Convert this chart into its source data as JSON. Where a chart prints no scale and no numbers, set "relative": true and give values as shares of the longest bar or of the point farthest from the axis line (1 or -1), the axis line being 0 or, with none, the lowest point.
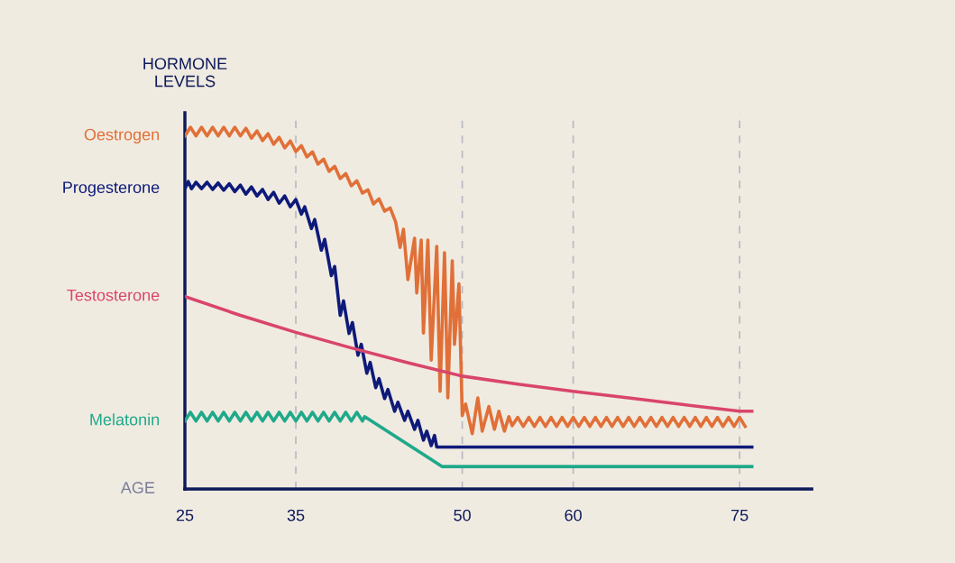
{
  "chart_data": {
    "type": "line",
    "relative": true,
    "ylabel": "HORMONE LEVELS",
    "xlabel": "AGE",
    "xlim": [
      25,
      81.5
    ],
    "xticks": [
      25,
      35,
      50,
      60,
      75
    ],
    "grid": "x",
    "legend": false,
    "marker": "none",
    "line_style": "solid",
    "series": [
      {
        "name": "Oestrogen",
        "color": "#e07038",
        "x": [
          25,
          25.5,
          26,
          26.5,
          27,
          27.5,
          28,
          28.5,
          29,
          29.5,
          30,
          30.5,
          31,
          31.5,
          32,
          32.5,
          33,
          33.5,
          34,
          34.5,
          35,
          35.5,
          36,
          36.5,
          37,
          37.5,
          38,
          38.5,
          39,
          39.5,
          40,
          40.5,
          41,
          41.5,
          42,
          42.5,
          43,
          43.5,
          44,
          44.4,
          44.7,
          45.1,
          45.7,
          45.9,
          46.3,
          46.5,
          46.9,
          47.2,
          47.7,
          48.0,
          48.4,
          48.7,
          49.1,
          49.3,
          49.7,
          50.0,
          50.3,
          50.9,
          51.4,
          51.8,
          52.4,
          52.9,
          53.3,
          53.8,
          54.2,
          54.5,
          55,
          55.5,
          56,
          56.5,
          57,
          57.5,
          58,
          58.5,
          59,
          59.5,
          60,
          60.5,
          61,
          61.5,
          62,
          62.5,
          63,
          63.5,
          64,
          64.5,
          65,
          65.5,
          66,
          66.5,
          67,
          67.5,
          68,
          68.5,
          69,
          69.5,
          70,
          70.5,
          71,
          71.5,
          72,
          72.5,
          73,
          73.5,
          74,
          74.5,
          75,
          75.5
        ],
        "values": [
          0.976,
          1.0,
          0.976,
          1.0,
          0.976,
          1.0,
          0.976,
          1.0,
          0.976,
          1.0,
          0.976,
          0.997,
          0.97,
          0.99,
          0.963,
          0.982,
          0.953,
          0.972,
          0.943,
          0.962,
          0.933,
          0.949,
          0.918,
          0.932,
          0.898,
          0.912,
          0.878,
          0.892,
          0.858,
          0.872,
          0.838,
          0.852,
          0.818,
          0.827,
          0.788,
          0.802,
          0.768,
          0.777,
          0.738,
          0.668,
          0.718,
          0.579,
          0.693,
          0.542,
          0.688,
          0.431,
          0.688,
          0.356,
          0.671,
          0.27,
          0.653,
          0.252,
          0.631,
          0.4,
          0.567,
          0.203,
          0.235,
          0.153,
          0.252,
          0.16,
          0.228,
          0.165,
          0.215,
          0.16,
          0.2,
          0.175,
          0.198,
          0.173,
          0.198,
          0.173,
          0.198,
          0.173,
          0.198,
          0.173,
          0.198,
          0.173,
          0.198,
          0.173,
          0.198,
          0.173,
          0.198,
          0.173,
          0.198,
          0.173,
          0.198,
          0.173,
          0.198,
          0.173,
          0.198,
          0.173,
          0.198,
          0.173,
          0.198,
          0.173,
          0.198,
          0.173,
          0.198,
          0.173,
          0.198,
          0.173,
          0.198,
          0.173,
          0.198,
          0.173,
          0.198,
          0.173,
          0.198,
          0.173
        ]
      },
      {
        "name": "Progesterone",
        "color": "#0d1a7a",
        "x": [
          25,
          25.3,
          25.6,
          26,
          26.5,
          27,
          27.5,
          28,
          28.5,
          29,
          29.5,
          30,
          30.5,
          31,
          31.5,
          32,
          32.5,
          33,
          33.5,
          34,
          34.5,
          35,
          35.5,
          35.8,
          36.4,
          36.7,
          37.3,
          37.6,
          38.2,
          38.5,
          39.0,
          39.3,
          39.8,
          40.1,
          40.6,
          40.9,
          41.4,
          41.7,
          42.2,
          42.5,
          43.0,
          43.3,
          43.9,
          44.2,
          44.8,
          45.1,
          45.7,
          46.0,
          46.5,
          46.8,
          47.2,
          47.5,
          47.7,
          76.1
        ],
        "values": [
          0.83,
          0.85,
          0.83,
          0.848,
          0.83,
          0.848,
          0.828,
          0.846,
          0.826,
          0.844,
          0.822,
          0.84,
          0.815,
          0.835,
          0.81,
          0.828,
          0.8,
          0.82,
          0.79,
          0.81,
          0.78,
          0.8,
          0.76,
          0.78,
          0.72,
          0.745,
          0.66,
          0.69,
          0.59,
          0.615,
          0.48,
          0.52,
          0.43,
          0.46,
          0.37,
          0.4,
          0.32,
          0.35,
          0.28,
          0.305,
          0.25,
          0.275,
          0.215,
          0.24,
          0.19,
          0.215,
          0.165,
          0.19,
          0.135,
          0.16,
          0.12,
          0.148,
          0.116,
          0.116
        ]
      },
      {
        "name": "Testosterone",
        "color": "#d9456b",
        "x": [
          25,
          30,
          35,
          40,
          45,
          50,
          55,
          60,
          65,
          70,
          75,
          76.1
        ],
        "values": [
          0.532,
          0.48,
          0.433,
          0.39,
          0.35,
          0.312,
          0.29,
          0.27,
          0.252,
          0.233,
          0.215,
          0.215
        ]
      },
      {
        "name": "Melatonin",
        "color": "#1fa98a",
        "x": [
          25,
          25.5,
          26,
          26.5,
          27,
          27.5,
          28,
          28.5,
          29,
          29.5,
          30,
          30.5,
          31,
          31.5,
          32,
          32.5,
          33,
          33.5,
          34,
          34.5,
          35,
          35.5,
          36,
          36.5,
          37,
          37.5,
          38,
          38.5,
          39,
          39.5,
          40,
          40.5,
          41,
          41.2,
          48.2,
          76.1
        ],
        "values": [
          0.188,
          0.212,
          0.188,
          0.212,
          0.188,
          0.212,
          0.188,
          0.212,
          0.188,
          0.212,
          0.188,
          0.212,
          0.188,
          0.212,
          0.188,
          0.212,
          0.188,
          0.212,
          0.188,
          0.212,
          0.188,
          0.212,
          0.188,
          0.212,
          0.188,
          0.212,
          0.188,
          0.212,
          0.188,
          0.212,
          0.188,
          0.212,
          0.188,
          0.2,
          0.062,
          0.062
        ]
      }
    ]
  }
}
